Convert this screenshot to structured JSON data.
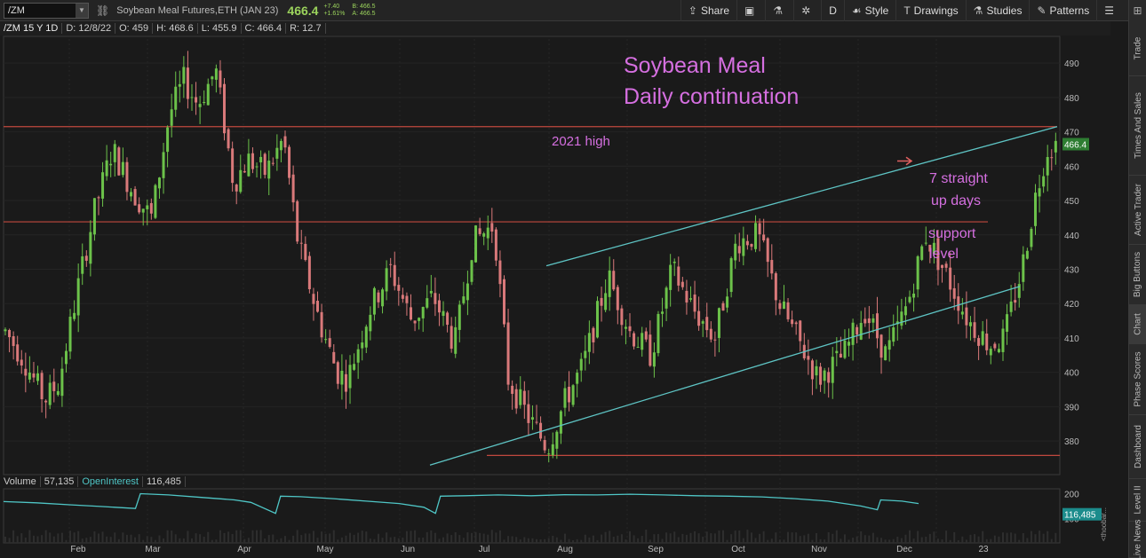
{
  "toolbar": {
    "symbol": "/ZM",
    "description": "Soybean Meal Futures,ETH (JAN 23)",
    "last": "466.4",
    "change": "+7.40",
    "change_pct": "+1.61%",
    "bid": "B: 466.5",
    "ask": "A: 466.5",
    "share": "Share",
    "period": "D",
    "style": "Style",
    "drawings": "Drawings",
    "studies": "Studies",
    "patterns": "Patterns"
  },
  "infobar": {
    "symbol_period": "/ZM 15 Y 1D",
    "date": "D: 12/8/22",
    "open": "O: 459",
    "high": "H: 468.6",
    "low": "L: 455.9",
    "close": "C: 466.4",
    "range": "R: 12.7"
  },
  "sidebar": {
    "tabs": [
      "Trade",
      "Times And Sales",
      "Active Trader",
      "Big Buttons",
      "Chart",
      "Phase Scores",
      "Dashboard",
      "Level II",
      "Live News"
    ]
  },
  "volume_bar": {
    "volume_label": "Volume",
    "volume_value": "57,135",
    "oi_label": "OpenInterest",
    "oi_value": "116,485",
    "oi_badge": "116,485",
    "oi_ticks": [
      "200",
      "100"
    ],
    "side_label": "<thoobar..."
  },
  "annotations": {
    "title_line1": "Soybean Meal",
    "title_line2": "Daily continuation",
    "high_2021": "2021 high",
    "straight_line1": "7 straight",
    "straight_line2": "up days",
    "support_line1": "support",
    "support_line2": "level"
  },
  "colors": {
    "background": "#1a1a1a",
    "up_candle": "#6cc24a",
    "down_candle": "#d9797a",
    "trendline": "#5ec4c4",
    "level_line": "#c0483e",
    "annotation_text": "#d56fe0",
    "last_price_badge": "#2e7d32",
    "oi_line": "#4fc6c6"
  },
  "chart_data": {
    "type": "candlestick",
    "y_ticks": [
      380,
      390,
      400,
      410,
      420,
      430,
      440,
      450,
      460,
      470,
      480,
      490
    ],
    "ylim": [
      371,
      497
    ],
    "x_tick_labels": [
      "Feb",
      "Mar",
      "Apr",
      "May",
      "Jun",
      "Jul",
      "Aug",
      "Sep",
      "Oct",
      "Nov",
      "Dec",
      "23"
    ],
    "last_price_label": "466.4",
    "horizontal_levels": [
      471.5,
      443.8,
      375.8
    ],
    "price_path": [
      [
        0,
        412
      ],
      [
        10,
        404
      ],
      [
        22,
        392
      ],
      [
        30,
        397
      ],
      [
        42,
        428
      ],
      [
        50,
        447
      ],
      [
        60,
        465
      ],
      [
        72,
        452
      ],
      [
        82,
        445
      ],
      [
        92,
        475
      ],
      [
        100,
        485
      ],
      [
        108,
        478
      ],
      [
        118,
        488
      ],
      [
        128,
        455
      ],
      [
        136,
        462
      ],
      [
        146,
        458
      ],
      [
        156,
        468
      ],
      [
        164,
        438
      ],
      [
        176,
        415
      ],
      [
        186,
        400
      ],
      [
        192,
        398
      ],
      [
        204,
        418
      ],
      [
        216,
        430
      ],
      [
        228,
        415
      ],
      [
        240,
        422
      ],
      [
        252,
        408
      ],
      [
        262,
        438
      ],
      [
        274,
        443
      ],
      [
        282,
        398
      ],
      [
        292,
        388
      ],
      [
        304,
        378
      ],
      [
        314,
        392
      ],
      [
        324,
        402
      ],
      [
        338,
        428
      ],
      [
        350,
        412
      ],
      [
        362,
        405
      ],
      [
        374,
        430
      ],
      [
        386,
        418
      ],
      [
        398,
        410
      ],
      [
        410,
        438
      ],
      [
        422,
        440
      ],
      [
        434,
        420
      ],
      [
        446,
        408
      ],
      [
        456,
        398
      ],
      [
        470,
        405
      ],
      [
        482,
        418
      ],
      [
        494,
        405
      ],
      [
        506,
        420
      ],
      [
        516,
        440
      ],
      [
        528,
        428
      ],
      [
        540,
        415
      ],
      [
        552,
        408
      ],
      [
        560,
        410
      ],
      [
        570,
        430
      ],
      [
        578,
        452
      ],
      [
        584,
        465
      ],
      [
        589,
        466.4
      ]
    ],
    "candle_count": 260,
    "oi_path": [
      [
        0,
        168
      ],
      [
        20,
        163
      ],
      [
        40,
        155
      ],
      [
        60,
        148
      ],
      [
        80,
        140
      ],
      [
        83,
        200
      ],
      [
        100,
        195
      ],
      [
        120,
        185
      ],
      [
        140,
        175
      ],
      [
        150,
        165
      ],
      [
        165,
        120
      ],
      [
        168,
        190
      ],
      [
        180,
        188
      ],
      [
        200,
        180
      ],
      [
        220,
        170
      ],
      [
        240,
        160
      ],
      [
        255,
        145
      ],
      [
        262,
        120
      ],
      [
        265,
        190
      ],
      [
        280,
        192
      ],
      [
        300,
        195
      ],
      [
        320,
        192
      ],
      [
        340,
        196
      ],
      [
        360,
        195
      ],
      [
        380,
        198
      ],
      [
        400,
        195
      ],
      [
        420,
        192
      ],
      [
        440,
        190
      ],
      [
        460,
        187
      ],
      [
        480,
        180
      ],
      [
        500,
        170
      ],
      [
        520,
        150
      ],
      [
        530,
        135
      ],
      [
        532,
        175
      ],
      [
        545,
        170
      ],
      [
        555,
        160
      ]
    ],
    "oi_ylim": [
      0,
      220
    ]
  }
}
